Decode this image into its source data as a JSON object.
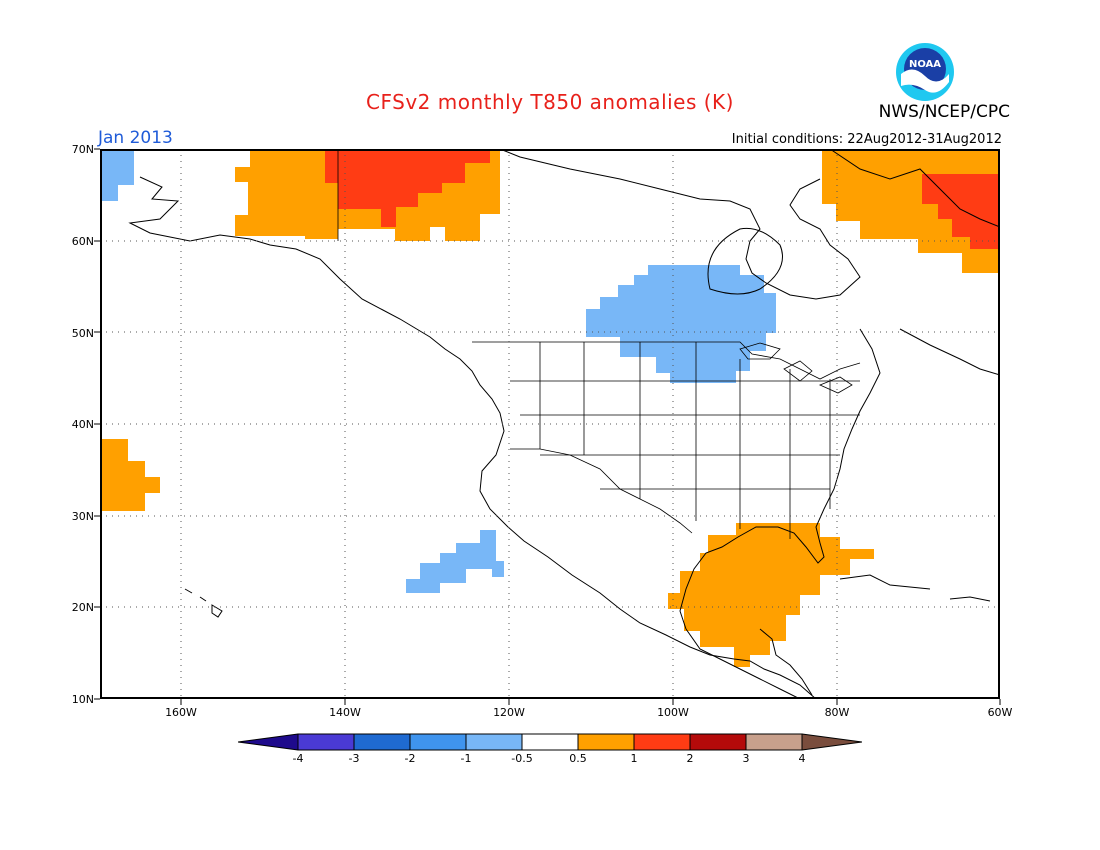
{
  "header": {
    "title": "CFSv2 monthly T850 anomalies (K)",
    "org": "NWS/NCEP/CPC",
    "month": "Jan 2013",
    "initial_conditions": "Initial conditions: 22Aug2012-31Aug2012",
    "logo_text": "NOAA"
  },
  "map": {
    "lat_labels": [
      "70N",
      "60N",
      "50N",
      "40N",
      "30N",
      "20N",
      "10N"
    ],
    "lon_labels": [
      "160W",
      "140W",
      "120W",
      "100W",
      "80W",
      "60W"
    ],
    "lat_range": [
      10,
      70
    ],
    "lon_range": [
      -171,
      -60
    ],
    "grid": "dotted",
    "anomaly_regions": [
      {
        "name": "alaska-yukon-positive",
        "level": "+0.5 to +1",
        "lat": [
          60,
          70
        ],
        "lon": [
          -152,
          -120
        ]
      },
      {
        "name": "alaska-north-slope-positive",
        "level": "+1 to +2",
        "lat": [
          63,
          70
        ],
        "lon": [
          -141,
          -127
        ]
      },
      {
        "name": "greenland-labrador-positive",
        "level": "+0.5 to +1",
        "lat": [
          57,
          70
        ],
        "lon": [
          -82,
          -60
        ]
      },
      {
        "name": "labrador-sea-positive",
        "level": "+1 to +2",
        "lat": [
          60,
          68
        ],
        "lon": [
          -72,
          -60
        ]
      },
      {
        "name": "central-canada-negative",
        "level": "-1 to -0.5",
        "lat": [
          43,
          56
        ],
        "lon": [
          -111,
          -87
        ]
      },
      {
        "name": "gulf-of-mexico-positive",
        "level": "+0.5 to +1",
        "lat": [
          14,
          30
        ],
        "lon": [
          -100,
          -76
        ]
      },
      {
        "name": "pacific-subtropical-positive",
        "level": "+0.5 to +1",
        "lat": [
          30,
          38
        ],
        "lon": [
          -171,
          -164
        ]
      },
      {
        "name": "pacific-subtropical-negative",
        "level": "-1 to -0.5",
        "lat": [
          21,
          28
        ],
        "lon": [
          -133,
          -120
        ]
      }
    ]
  },
  "colorbar": {
    "labels": [
      "-4",
      "-3",
      "-2",
      "-1",
      "-0.5",
      "0.5",
      "1",
      "2",
      "3",
      "4"
    ],
    "colors": [
      "#1e0a8c",
      "#4a3ad4",
      "#1f6ad1",
      "#3f94ee",
      "#78b7f7",
      "#ffffff",
      "#ffa000",
      "#ff3c14",
      "#b40a0a",
      "#c8a08c",
      "#7a4d3d"
    ],
    "end_left_color": "#1e0a8c",
    "end_right_color": "#7a4d3d"
  }
}
